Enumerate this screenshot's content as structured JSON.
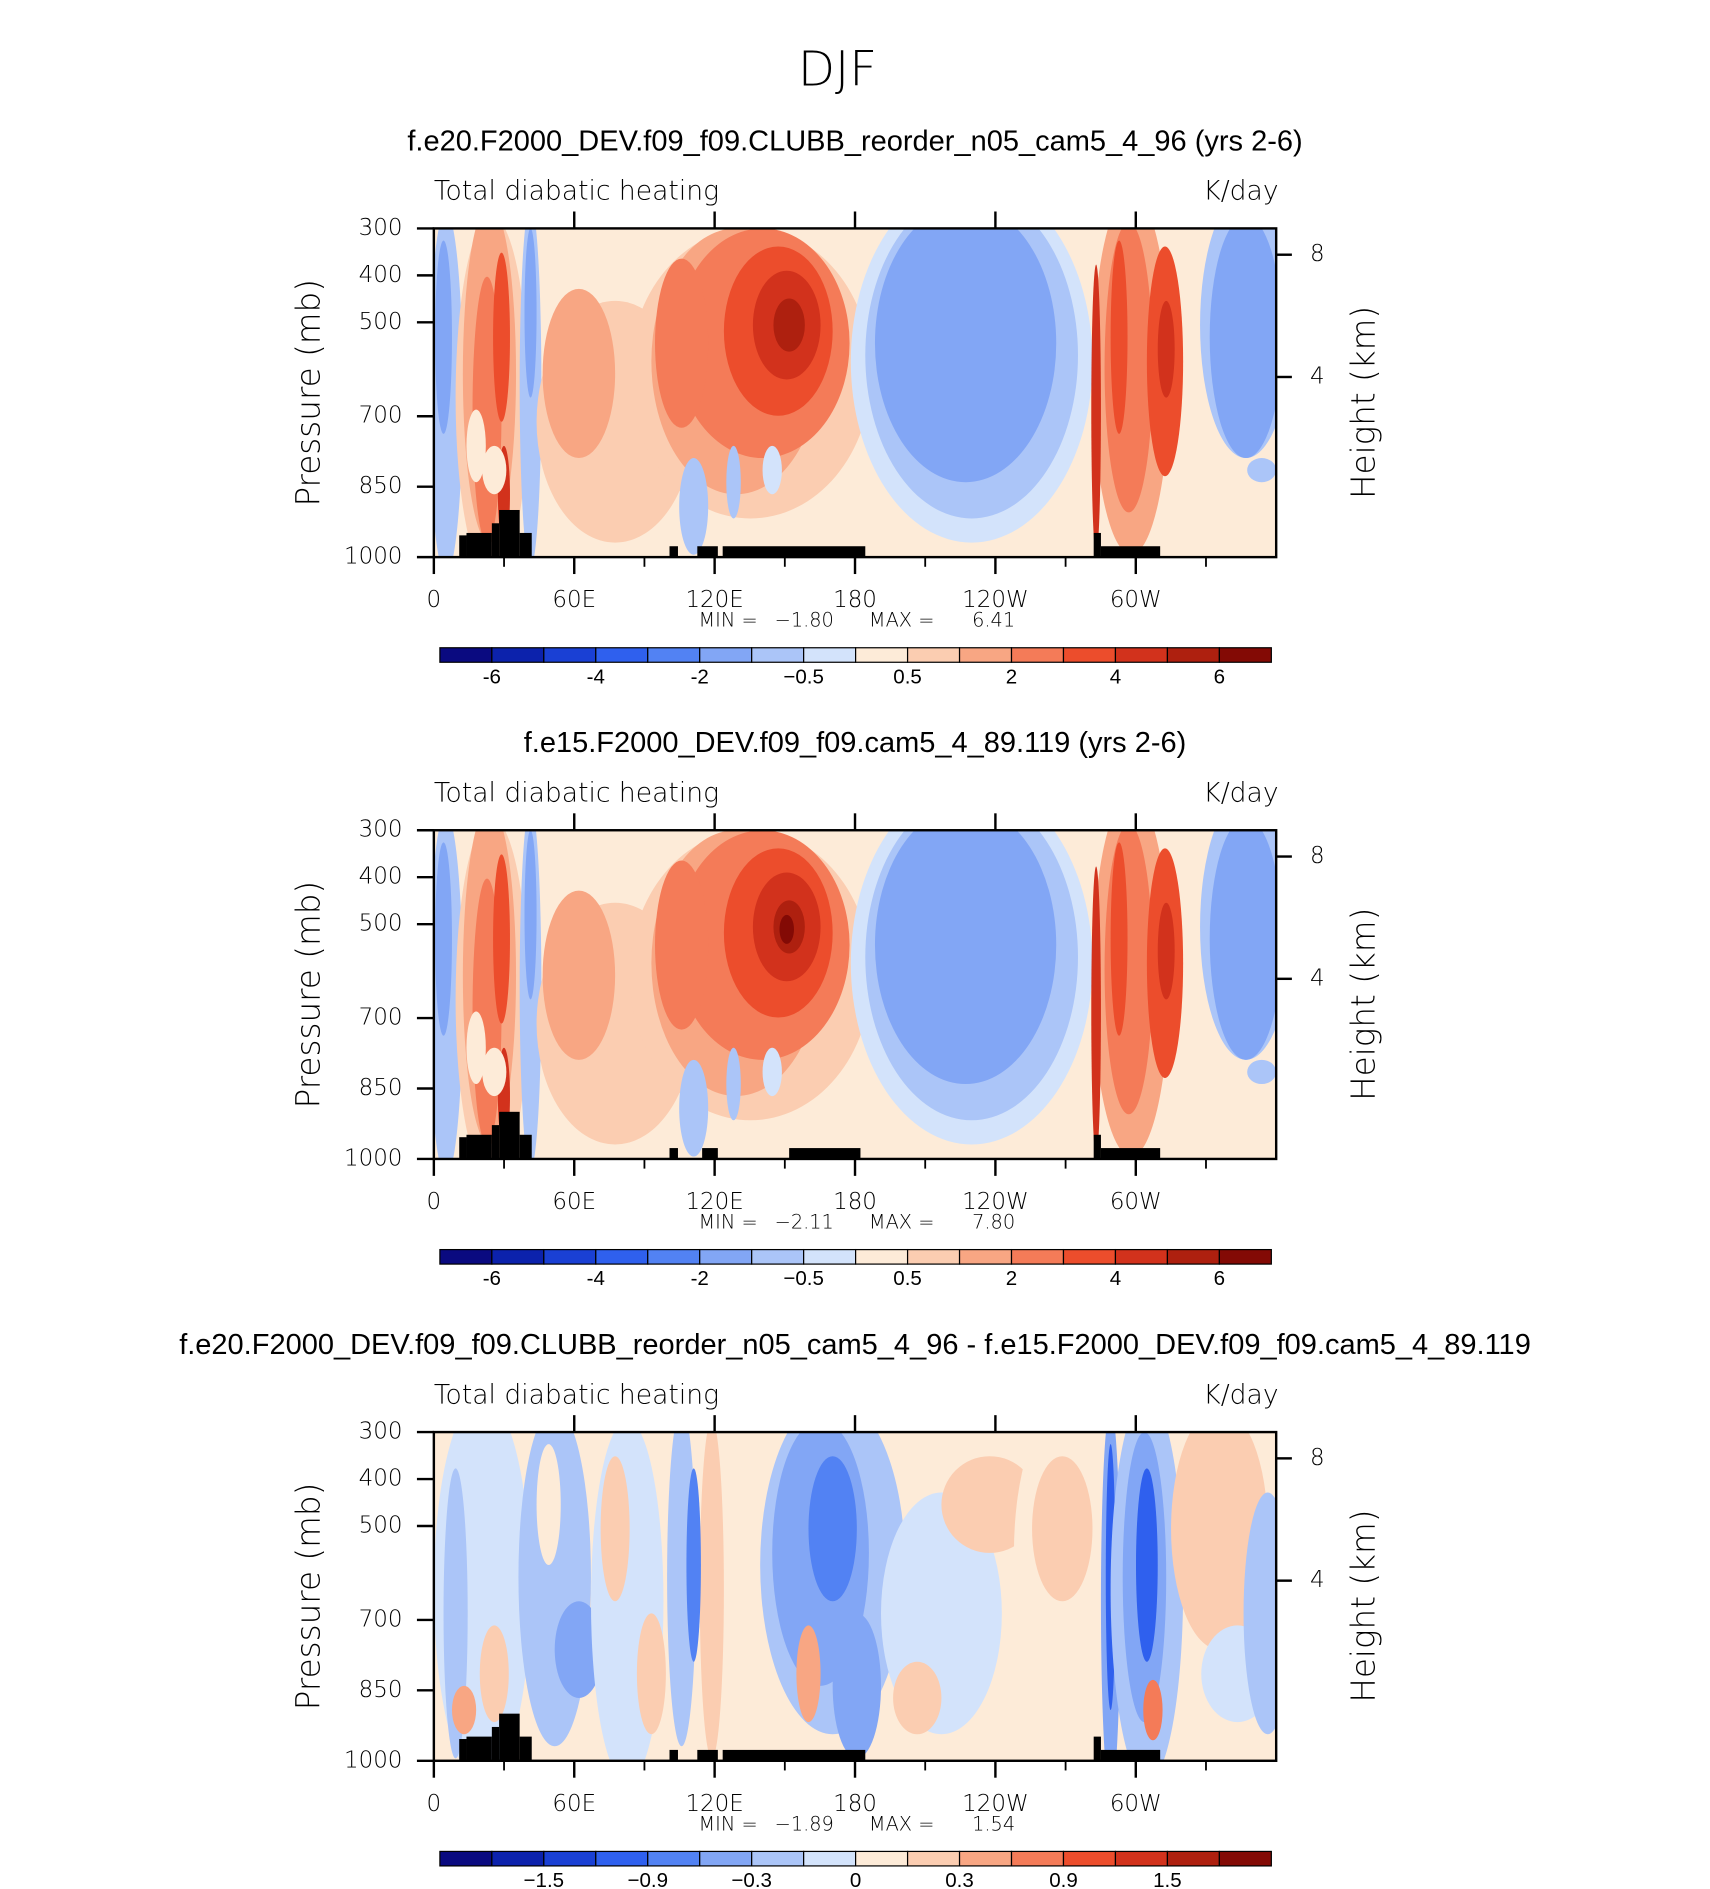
{
  "title": "DJF",
  "chart_data": [
    {
      "type": "contour",
      "title": "f.e20.F2000_DEV.f09_f09.CLUBB_reorder_n05_cam5_4_96 (yrs 2-6)",
      "left_title": "Total diabatic heating",
      "right_title": "K/day",
      "ylabel": "Pressure (mb)",
      "y2label": "Height (km)",
      "xlim": [
        0,
        360
      ],
      "xticks": [
        0,
        {
          "value": 60,
          "label": "60E"
        },
        {
          "value": 120,
          "label": "120E"
        },
        180,
        {
          "value": 240,
          "label": "120W"
        },
        {
          "value": 300,
          "label": "60W"
        }
      ],
      "xminor_ticks": [
        30,
        90,
        150,
        210,
        270,
        330
      ],
      "ylim": [
        1000,
        300
      ],
      "yticks": [
        300,
        400,
        500,
        700,
        850,
        1000
      ],
      "y2ticks": [
        8,
        4
      ],
      "min_text": "MIN =",
      "min": {
        "value": -1.8,
        "label": "−1.80"
      },
      "max_text": "MAX =",
      "max": {
        "value": 6.41,
        "label": "6.41"
      },
      "colorbar": {
        "colors": [
          "#0a0a80",
          "#0c22ac",
          "#1a40d4",
          "#2f60ee",
          "#5282f3",
          "#82a6f5",
          "#abc5f8",
          "#d3e3fb",
          "#fdebd8",
          "#fbcdb1",
          "#f8a683",
          "#f47b58",
          "#ec4d2c",
          "#d2321c",
          "#ae200f",
          "#830a05"
        ],
        "ticks": [
          -6,
          null,
          -4,
          null,
          -2,
          null,
          {
            "value": -0.5,
            "label": "−0.5"
          },
          null,
          0.5,
          null,
          2,
          null,
          4,
          null,
          6
        ]
      }
    },
    {
      "type": "contour",
      "title": "f.e15.F2000_DEV.f09_f09.cam5_4_89.119 (yrs 2-6)",
      "left_title": "Total diabatic heating",
      "right_title": "K/day",
      "ylabel": "Pressure (mb)",
      "y2label": "Height (km)",
      "xlim": [
        0,
        360
      ],
      "xticks": [
        0,
        {
          "value": 60,
          "label": "60E"
        },
        {
          "value": 120,
          "label": "120E"
        },
        180,
        {
          "value": 240,
          "label": "120W"
        },
        {
          "value": 300,
          "label": "60W"
        }
      ],
      "xminor_ticks": [
        30,
        90,
        150,
        210,
        270,
        330
      ],
      "ylim": [
        1000,
        300
      ],
      "yticks": [
        300,
        400,
        500,
        700,
        850,
        1000
      ],
      "y2ticks": [
        8,
        4
      ],
      "min_text": "MIN =",
      "min": {
        "value": -2.11,
        "label": "−2.11"
      },
      "max_text": "MAX =",
      "max": {
        "value": 7.8,
        "label": "7.80"
      },
      "colorbar": {
        "colors": [
          "#0a0a80",
          "#0c22ac",
          "#1a40d4",
          "#2f60ee",
          "#5282f3",
          "#82a6f5",
          "#abc5f8",
          "#d3e3fb",
          "#fdebd8",
          "#fbcdb1",
          "#f8a683",
          "#f47b58",
          "#ec4d2c",
          "#d2321c",
          "#ae200f",
          "#830a05"
        ],
        "ticks": [
          -6,
          null,
          -4,
          null,
          -2,
          null,
          {
            "value": -0.5,
            "label": "−0.5"
          },
          null,
          0.5,
          null,
          2,
          null,
          4,
          null,
          6
        ]
      }
    },
    {
      "type": "contour",
      "title": "f.e20.F2000_DEV.f09_f09.CLUBB_reorder_n05_cam5_4_96 - f.e15.F2000_DEV.f09_f09.cam5_4_89.119",
      "left_title": "Total diabatic heating",
      "right_title": "K/day",
      "ylabel": "Pressure (mb)",
      "y2label": "Height (km)",
      "xlim": [
        0,
        360
      ],
      "xticks": [
        0,
        {
          "value": 60,
          "label": "60E"
        },
        {
          "value": 120,
          "label": "120E"
        },
        180,
        {
          "value": 240,
          "label": "120W"
        },
        {
          "value": 300,
          "label": "60W"
        }
      ],
      "xminor_ticks": [
        30,
        90,
        150,
        210,
        270,
        330
      ],
      "ylim": [
        1000,
        300
      ],
      "yticks": [
        300,
        400,
        500,
        700,
        850,
        1000
      ],
      "y2ticks": [
        8,
        4
      ],
      "min_text": "MIN =",
      "min": {
        "value": -1.89,
        "label": "−1.89"
      },
      "max_text": "MAX =",
      "max": {
        "value": 1.54,
        "label": "1.54"
      },
      "colorbar": {
        "colors": [
          "#0a0a80",
          "#0c22ac",
          "#1a40d4",
          "#2f60ee",
          "#5282f3",
          "#82a6f5",
          "#abc5f8",
          "#d3e3fb",
          "#fdebd8",
          "#fbcdb1",
          "#f8a683",
          "#f47b58",
          "#ec4d2c",
          "#d2321c",
          "#ae200f",
          "#830a05"
        ],
        "ticks": [
          null,
          {
            "value": -1.5,
            "label": "−1.5"
          },
          null,
          {
            "value": -0.9,
            "label": "−0.9"
          },
          null,
          {
            "value": -0.3,
            "label": "−0.3"
          },
          null,
          0,
          null,
          0.3,
          null,
          0.9,
          null,
          1.5,
          null
        ]
      }
    }
  ]
}
